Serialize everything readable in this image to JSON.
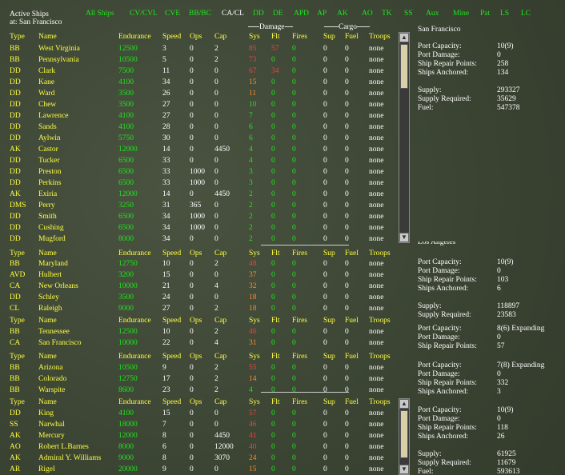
{
  "title": {
    "line1": "Active Ships",
    "line2": "at: San Francisco"
  },
  "tabs": [
    "All Ships",
    "CV/CVL",
    "CVE",
    "BB/BC",
    "CA/CL",
    "DD",
    "DE",
    "APD",
    "AP",
    "AK",
    "AO",
    "TK",
    "SS",
    "Aux",
    "Mine",
    "Pat",
    "LS",
    "LC"
  ],
  "active_tab": "CA/CL",
  "group_labels": {
    "damage": "Damage",
    "cargo": "Cargo"
  },
  "columns": [
    "Type",
    "Name",
    "Endurance",
    "Speed",
    "Ops",
    "Cap",
    "Sys",
    "Flt",
    "Fires",
    "Sup",
    "Fuel",
    "Troops"
  ],
  "sections": [
    {
      "rows": [
        [
          "BB",
          "West Virginia",
          "12500",
          "3",
          "0",
          "2",
          "85",
          "57",
          "0",
          "0",
          "0",
          "none"
        ],
        [
          "BB",
          "Pennsylvania",
          "10500",
          "5",
          "0",
          "2",
          "73",
          "0",
          "0",
          "0",
          "0",
          "none"
        ],
        [
          "DD",
          "Clark",
          "7500",
          "11",
          "0",
          "0",
          "67",
          "34",
          "0",
          "0",
          "0",
          "none"
        ],
        [
          "DD",
          "Kane",
          "4100",
          "34",
          "0",
          "0",
          "15",
          "0",
          "0",
          "0",
          "0",
          "none"
        ],
        [
          "DD",
          "Ward",
          "3500",
          "26",
          "0",
          "0",
          "11",
          "0",
          "0",
          "0",
          "0",
          "none"
        ],
        [
          "DD",
          "Chew",
          "3500",
          "27",
          "0",
          "0",
          "10",
          "0",
          "0",
          "0",
          "0",
          "none"
        ],
        [
          "DD",
          "Lawrence",
          "4100",
          "27",
          "0",
          "0",
          "7",
          "0",
          "0",
          "0",
          "0",
          "none"
        ],
        [
          "DD",
          "Sands",
          "4100",
          "28",
          "0",
          "0",
          "6",
          "0",
          "0",
          "0",
          "0",
          "none"
        ],
        [
          "DD",
          "Aylwin",
          "5750",
          "30",
          "0",
          "0",
          "6",
          "0",
          "0",
          "0",
          "0",
          "none"
        ],
        [
          "AK",
          "Castor",
          "12000",
          "14",
          "0",
          "4450",
          "4",
          "0",
          "0",
          "0",
          "0",
          "none"
        ],
        [
          "DD",
          "Tucker",
          "6500",
          "33",
          "0",
          "0",
          "4",
          "0",
          "0",
          "0",
          "0",
          "none"
        ],
        [
          "DD",
          "Preston",
          "6500",
          "33",
          "1000",
          "0",
          "3",
          "0",
          "0",
          "0",
          "0",
          "none"
        ],
        [
          "DD",
          "Perkins",
          "6500",
          "33",
          "1000",
          "0",
          "3",
          "0",
          "0",
          "0",
          "0",
          "none"
        ],
        [
          "AK",
          "Exiria",
          "12000",
          "14",
          "0",
          "4450",
          "2",
          "0",
          "0",
          "0",
          "0",
          "none"
        ],
        [
          "DMS",
          "Perry",
          "3250",
          "31",
          "365",
          "0",
          "2",
          "0",
          "0",
          "0",
          "0",
          "none"
        ],
        [
          "DD",
          "Smith",
          "6500",
          "34",
          "1000",
          "0",
          "2",
          "0",
          "0",
          "0",
          "0",
          "none"
        ],
        [
          "DD",
          "Cushing",
          "6500",
          "34",
          "1000",
          "0",
          "2",
          "0",
          "0",
          "0",
          "0",
          "none"
        ],
        [
          "DD",
          "Mugford",
          "8000",
          "34",
          "0",
          "0",
          "2",
          "0",
          "0",
          "0",
          "0",
          "none"
        ]
      ]
    },
    {
      "rows": [
        [
          "BB",
          "Maryland",
          "12750",
          "10",
          "0",
          "2",
          "48",
          "0",
          "0",
          "0",
          "0",
          "none"
        ],
        [
          "AVD",
          "Hulbert",
          "3200",
          "15",
          "0",
          "0",
          "37",
          "0",
          "0",
          "0",
          "0",
          "none"
        ],
        [
          "CA",
          "New Orleans",
          "10000",
          "21",
          "0",
          "4",
          "32",
          "0",
          "0",
          "0",
          "0",
          "none"
        ],
        [
          "DD",
          "Schley",
          "3500",
          "24",
          "0",
          "0",
          "18",
          "0",
          "0",
          "0",
          "0",
          "none"
        ],
        [
          "CL",
          "Raleigh",
          "9000",
          "27",
          "0",
          "2",
          "18",
          "0",
          "0",
          "0",
          "0",
          "none"
        ]
      ]
    },
    {
      "rows": [
        [
          "BB",
          "Tennessee",
          "12500",
          "10",
          "0",
          "2",
          "46",
          "0",
          "0",
          "0",
          "0",
          "none"
        ],
        [
          "CA",
          "San Francisco",
          "10000",
          "22",
          "0",
          "4",
          "31",
          "0",
          "0",
          "0",
          "0",
          "none"
        ]
      ]
    },
    {
      "rows": [
        [
          "BB",
          "Arizona",
          "10500",
          "9",
          "0",
          "2",
          "55",
          "0",
          "0",
          "0",
          "0",
          "none"
        ],
        [
          "BB",
          "Colorado",
          "12750",
          "17",
          "0",
          "2",
          "14",
          "0",
          "0",
          "0",
          "0",
          "none"
        ],
        [
          "BB",
          "Warspite",
          "8600",
          "23",
          "0",
          "2",
          "4",
          "0",
          "0",
          "0",
          "0",
          "none"
        ]
      ]
    },
    {
      "rows": [
        [
          "DD",
          "King",
          "4100",
          "15",
          "0",
          "0",
          "57",
          "0",
          "0",
          "0",
          "0",
          "none"
        ],
        [
          "SS",
          "Narwhal",
          "18000",
          "7",
          "0",
          "0",
          "46",
          "0",
          "0",
          "0",
          "0",
          "none"
        ],
        [
          "AK",
          "Mercury",
          "12000",
          "8",
          "0",
          "4450",
          "41",
          "0",
          "0",
          "0",
          "0",
          "none"
        ],
        [
          "AO",
          "Robert L.Barnes",
          "8000",
          "6",
          "0",
          "12000",
          "40",
          "0",
          "0",
          "0",
          "0",
          "none"
        ],
        [
          "AK",
          "Admiral Y. Williams",
          "9000",
          "8",
          "0",
          "3070",
          "24",
          "0",
          "0",
          "0",
          "0",
          "none"
        ],
        [
          "AR",
          "Rigel",
          "20000",
          "9",
          "0",
          "0",
          "15",
          "0",
          "0",
          "0",
          "0",
          "none"
        ]
      ]
    }
  ],
  "ports": [
    {
      "name": "San Francisco",
      "stats": [
        [
          "Port Capacity:",
          "10(9)"
        ],
        [
          "Port Damage:",
          "0"
        ],
        [
          "Ship Repair Points:",
          "258"
        ],
        [
          "Ships Anchored:",
          "134"
        ],
        [
          "",
          ""
        ],
        [
          "Supply:",
          "293327"
        ],
        [
          "Supply Required:",
          "35629"
        ],
        [
          "Fuel:",
          "547378"
        ]
      ]
    },
    {
      "name": "Los Angeles",
      "stats": [
        [
          "Port Capacity:",
          "10(9)"
        ],
        [
          "Port Damage:",
          "0"
        ],
        [
          "Ship Repair Points:",
          "103"
        ],
        [
          "Ships Anchored:",
          "6"
        ],
        [
          "",
          ""
        ],
        [
          "Supply:",
          "118897"
        ],
        [
          "Supply Required:",
          "23583"
        ]
      ]
    },
    {
      "name": "",
      "stats": [
        [
          "Port Capacity:",
          "8(6) Expanding"
        ],
        [
          "Port Damage:",
          "0"
        ],
        [
          "Ship Repair Points:",
          "57"
        ]
      ]
    },
    {
      "name": "",
      "stats": [
        [
          "Port Capacity:",
          "7(8) Expanding"
        ],
        [
          "Port Damage:",
          "0"
        ],
        [
          "Ship Repair Points:",
          "332"
        ],
        [
          "Ships Anchored:",
          "3"
        ]
      ]
    },
    {
      "name": "",
      "stats": [
        [
          "Port Capacity:",
          "10(9)"
        ],
        [
          "Port Damage:",
          "0"
        ],
        [
          "Ship Repair Points:",
          "118"
        ],
        [
          "Ships Anchored:",
          "26"
        ],
        [
          "",
          ""
        ],
        [
          "Supply:",
          "61925"
        ],
        [
          "Supply Required:",
          "11679"
        ],
        [
          "Fuel:",
          "593613"
        ]
      ]
    }
  ]
}
